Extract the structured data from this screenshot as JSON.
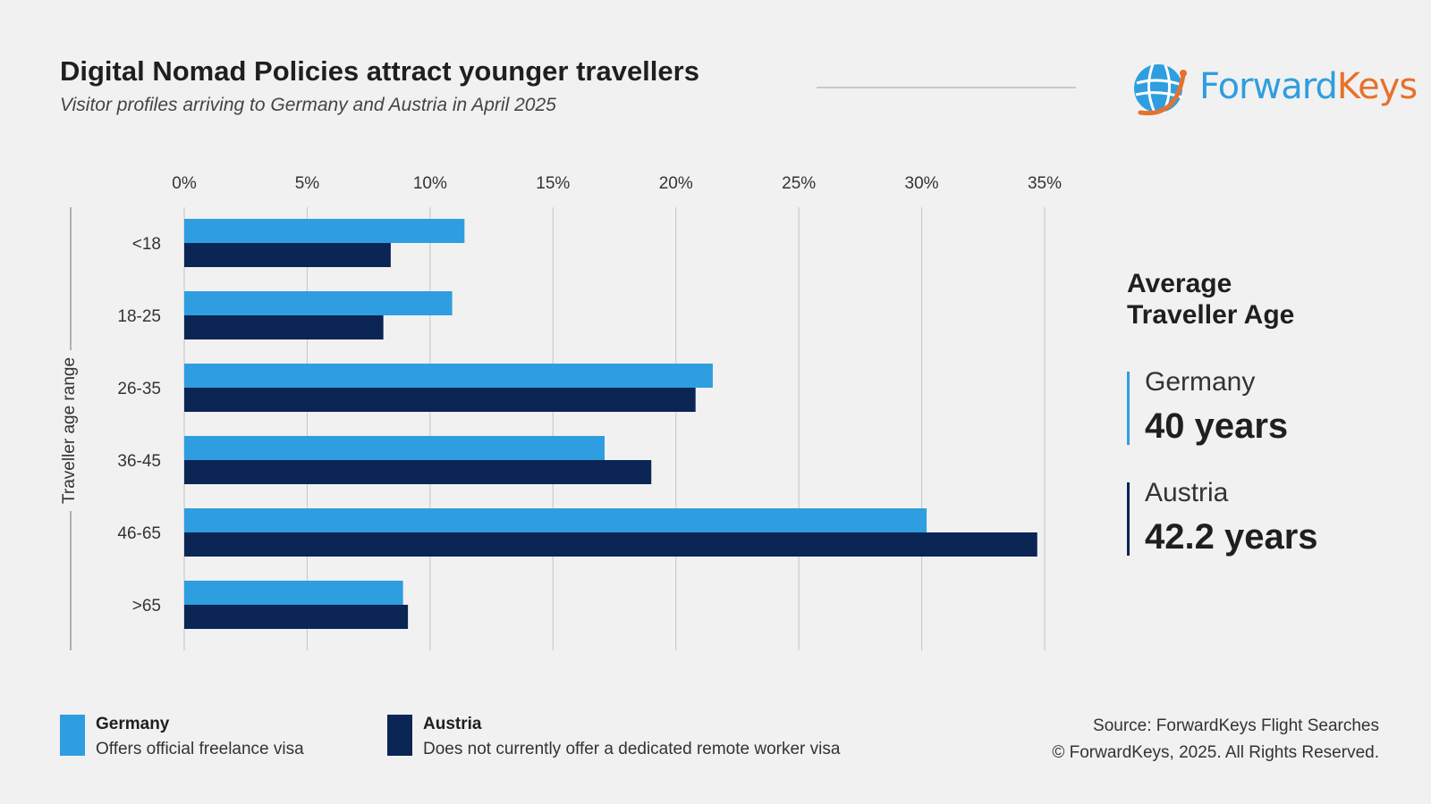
{
  "header": {
    "title": "Digital Nomad Policies attract younger travellers",
    "subtitle": "Visitor profiles arriving to Germany and Austria in April 2025"
  },
  "logo": {
    "word_1": "Forward",
    "word_2": "Keys",
    "icon": "globe-icon"
  },
  "colors": {
    "germany": "#2f9ee0",
    "austria": "#0b2555",
    "grid": "#c4c4c4",
    "background": "#f1f1f1"
  },
  "chart_data": {
    "type": "bar",
    "orientation": "horizontal",
    "categories": [
      "<18",
      "18-25",
      "26-35",
      "36-45",
      "46-65",
      ">65"
    ],
    "series": [
      {
        "name": "Germany",
        "values": [
          11.4,
          10.9,
          21.5,
          17.1,
          30.2,
          8.9
        ]
      },
      {
        "name": "Austria",
        "values": [
          8.4,
          8.1,
          20.8,
          19.0,
          34.7,
          9.1
        ]
      }
    ],
    "ylabel": "Traveller age range",
    "xlabel": "",
    "xlim": [
      0,
      35
    ],
    "xticks": [
      "0%",
      "5%",
      "10%",
      "15%",
      "20%",
      "25%",
      "30%",
      "35%"
    ],
    "grid": true,
    "legend": "bottom-left"
  },
  "average_age": {
    "heading": "Average Traveller Age",
    "items": [
      {
        "country": "Germany",
        "value": "40 years"
      },
      {
        "country": "Austria",
        "value": "42.2 years"
      }
    ]
  },
  "legend": [
    {
      "name": "Germany",
      "description": "Offers official freelance visa"
    },
    {
      "name": "Austria",
      "description": "Does not currently offer a dedicated remote worker visa"
    }
  ],
  "footer": {
    "source": "Source: ForwardKeys Flight Searches",
    "copyright": "© ForwardKeys, 2025. All Rights Reserved."
  }
}
